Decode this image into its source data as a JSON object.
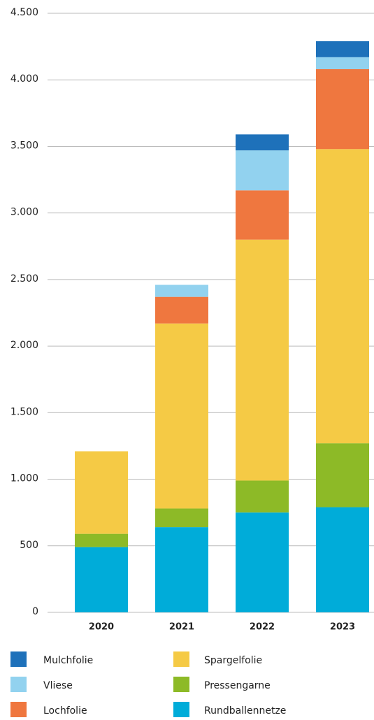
{
  "chart_data": {
    "type": "stacked_bar",
    "categories": [
      "2020",
      "2021",
      "2022",
      "2023"
    ],
    "series": [
      {
        "name": "Rundballennetze",
        "color": "#00acd9",
        "values": [
          490,
          640,
          750,
          790
        ]
      },
      {
        "name": "Pressengarne",
        "color": "#8dba27",
        "values": [
          100,
          140,
          240,
          480
        ]
      },
      {
        "name": "Spargelfolie",
        "color": "#f5ca45",
        "values": [
          620,
          1390,
          1810,
          2210
        ]
      },
      {
        "name": "Lochfolie",
        "color": "#ef773f",
        "values": [
          0,
          200,
          370,
          600
        ]
      },
      {
        "name": "Vliese",
        "color": "#92d2ef",
        "values": [
          0,
          90,
          300,
          90
        ]
      },
      {
        "name": "Mulchfolie",
        "color": "#1e71ba",
        "values": [
          0,
          0,
          120,
          120
        ]
      }
    ],
    "ylim": [
      0,
      4500
    ],
    "yticks": [
      0,
      500,
      {
        "value": 1000,
        "label": "1.000"
      },
      {
        "value": 1500,
        "label": "1.500"
      },
      {
        "value": 2000,
        "label": "2.000"
      },
      {
        "value": 2500,
        "label": "2.500"
      },
      {
        "value": 3000,
        "label": "3.000"
      },
      {
        "value": 3500,
        "label": "3.500"
      },
      {
        "value": 4000,
        "label": "4.000"
      },
      {
        "value": 4500,
        "label": "4.500"
      }
    ],
    "grid": true
  }
}
